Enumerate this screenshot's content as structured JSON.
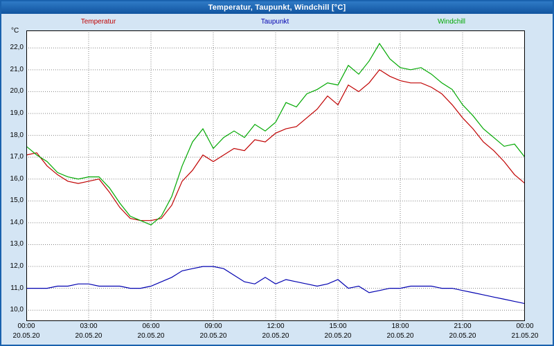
{
  "window": {
    "title": "Temperatur, Taupunkt, Windchill [°C]"
  },
  "axes": {
    "unit": "°C",
    "yticks": [
      22,
      21,
      20,
      19,
      18,
      17,
      16,
      15,
      14,
      13,
      12,
      11,
      10
    ],
    "ytick_labels": [
      "22,0",
      "21,0",
      "20,0",
      "19,0",
      "18,0",
      "17,0",
      "16,0",
      "15,0",
      "14,0",
      "13,0",
      "12,0",
      "11,0",
      "10,0"
    ],
    "xticks": [
      0,
      3,
      6,
      9,
      12,
      15,
      18,
      21,
      24
    ],
    "xtick_labels": [
      "00:00",
      "03:00",
      "06:00",
      "09:00",
      "12:00",
      "15:00",
      "18:00",
      "21:00",
      "00:00"
    ],
    "date_labels": [
      "20.05.20",
      "20.05.20",
      "20.05.20",
      "20.05.20",
      "20.05.20",
      "20.05.20",
      "20.05.20",
      "20.05.20",
      "21.05.20"
    ]
  },
  "chart_data": {
    "type": "line",
    "title": "Temperatur, Taupunkt, Windchill [°C]",
    "xlabel": "",
    "ylabel": "°C",
    "xlim": [
      0,
      24
    ],
    "ylim": [
      9.5,
      22.8
    ],
    "grid": true,
    "legend_position": "top",
    "x": [
      0,
      0.5,
      1,
      1.5,
      2,
      2.5,
      3,
      3.5,
      4,
      4.5,
      5,
      5.5,
      6,
      6.5,
      7,
      7.5,
      8,
      8.5,
      9,
      9.5,
      10,
      10.5,
      11,
      11.5,
      12,
      12.5,
      13,
      13.5,
      14,
      14.5,
      15,
      15.5,
      16,
      16.5,
      17,
      17.5,
      18,
      18.5,
      19,
      19.5,
      20,
      20.5,
      21,
      21.5,
      22,
      22.5,
      23,
      23.5,
      24
    ],
    "series": [
      {
        "name": "Temperatur",
        "color": "#c00000",
        "values": [
          17.1,
          17.2,
          16.6,
          16.2,
          15.9,
          15.8,
          15.9,
          16.0,
          15.4,
          14.7,
          14.2,
          14.1,
          14.1,
          14.2,
          14.8,
          15.9,
          16.4,
          17.1,
          16.8,
          17.1,
          17.4,
          17.3,
          17.8,
          17.7,
          18.1,
          18.3,
          18.4,
          18.8,
          19.2,
          19.8,
          19.4,
          20.3,
          20.0,
          20.4,
          21.0,
          20.7,
          20.5,
          20.4,
          20.4,
          20.2,
          19.9,
          19.4,
          18.8,
          18.3,
          17.7,
          17.3,
          16.8,
          16.2,
          15.8
        ]
      },
      {
        "name": "Taupunkt",
        "color": "#0000b0",
        "values": [
          11.0,
          11.0,
          11.0,
          11.1,
          11.1,
          11.2,
          11.2,
          11.1,
          11.1,
          11.1,
          11.0,
          11.0,
          11.1,
          11.3,
          11.5,
          11.8,
          11.9,
          12.0,
          12.0,
          11.9,
          11.6,
          11.3,
          11.2,
          11.5,
          11.2,
          11.4,
          11.3,
          11.2,
          11.1,
          11.2,
          11.4,
          11.0,
          11.1,
          10.8,
          10.9,
          11.0,
          11.0,
          11.1,
          11.1,
          11.1,
          11.0,
          11.0,
          10.9,
          10.8,
          10.7,
          10.6,
          10.5,
          10.4,
          10.3
        ]
      },
      {
        "name": "Windchill",
        "color": "#00a800",
        "values": [
          17.5,
          17.1,
          16.8,
          16.3,
          16.1,
          16.0,
          16.1,
          16.1,
          15.6,
          14.9,
          14.3,
          14.1,
          13.9,
          14.3,
          15.2,
          16.6,
          17.7,
          18.3,
          17.4,
          17.9,
          18.2,
          17.9,
          18.5,
          18.2,
          18.6,
          19.5,
          19.3,
          19.9,
          20.1,
          20.4,
          20.3,
          21.2,
          20.8,
          21.4,
          22.2,
          21.5,
          21.1,
          21.0,
          21.1,
          20.8,
          20.4,
          20.1,
          19.4,
          18.9,
          18.3,
          17.9,
          17.5,
          17.6,
          17.0
        ]
      }
    ]
  }
}
